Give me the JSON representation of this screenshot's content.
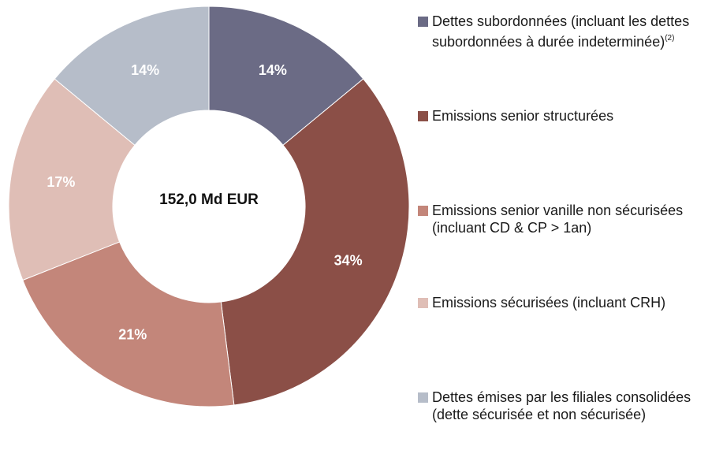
{
  "chart_data": {
    "type": "donut",
    "center_label": "152,0 Md EUR",
    "categories": [
      "Dettes subordonnées  (incluant les dettes subordonnées  à durée indeterminée)",
      "Emissions senior structurées",
      "Emissions senior vanille  non sécurisées (incluant CD  & CP > 1an)",
      "Emissions sécurisées (incluant CRH)",
      "Dettes émises par les filiales consolidées (dette sécurisée et non sécurisée)"
    ],
    "category_footnotes": [
      "(2)",
      null,
      null,
      null,
      null
    ],
    "values": [
      14,
      34,
      21,
      17,
      14
    ],
    "value_labels": [
      "14%",
      "34%",
      "21%",
      "17%",
      "14%"
    ],
    "colors": [
      "#6b6b85",
      "#8b4f47",
      "#c3867a",
      "#dfbeb6",
      "#b6bdc9"
    ]
  }
}
